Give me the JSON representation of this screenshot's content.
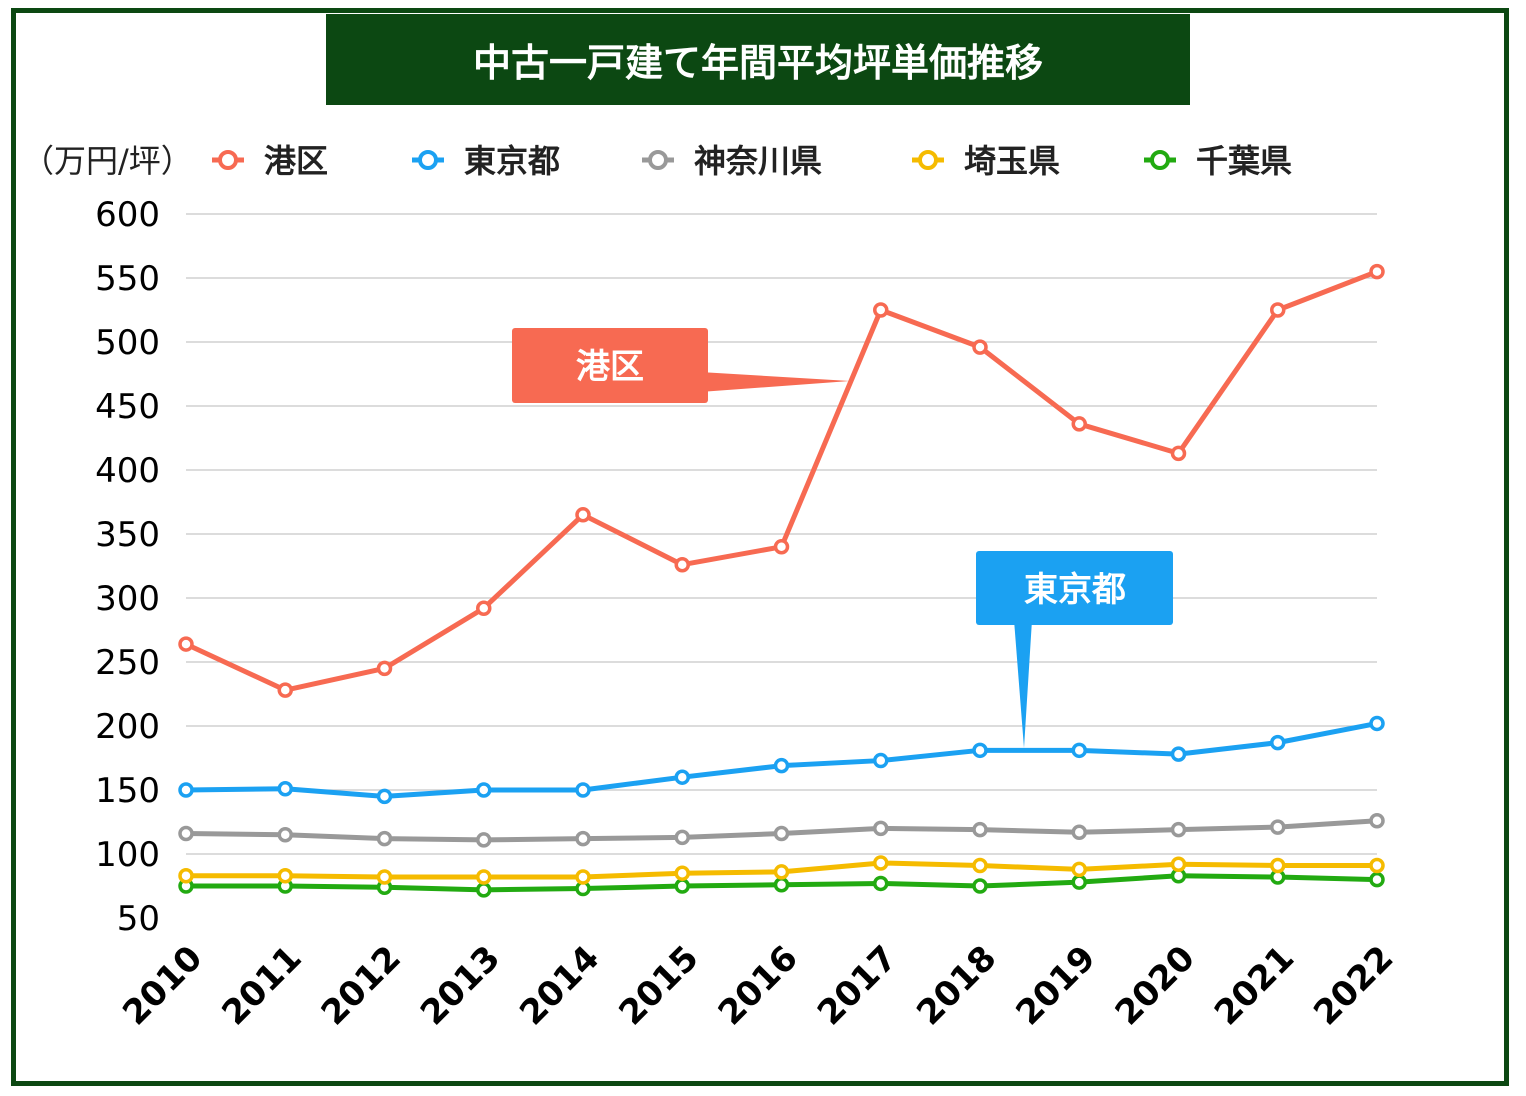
{
  "title": "中古一戸建て年間平均坪単価推移",
  "chart_data": {
    "type": "line",
    "title": "中古一戸建て年間平均坪単価推移",
    "unit_label": "（万円/坪）",
    "x": [
      "2010",
      "2011",
      "2012",
      "2013",
      "2014",
      "2015",
      "2016",
      "2017",
      "2018",
      "2019",
      "2020",
      "2021",
      "2022"
    ],
    "ylim": [
      50,
      600
    ],
    "yticks": [
      50,
      100,
      150,
      200,
      250,
      300,
      350,
      400,
      450,
      500,
      550,
      600
    ],
    "grid": true,
    "legend_position": "top",
    "series": [
      {
        "name": "港区",
        "color": "#f76a52",
        "values": [
          264,
          228,
          245,
          292,
          365,
          326,
          340,
          525,
          496,
          436,
          413,
          525,
          555
        ]
      },
      {
        "name": "東京都",
        "color": "#1ba1f2",
        "values": [
          150,
          151,
          145,
          150,
          150,
          160,
          169,
          173,
          181,
          181,
          178,
          187,
          202
        ]
      },
      {
        "name": "神奈川県",
        "color": "#999999",
        "values": [
          116,
          115,
          112,
          111,
          112,
          113,
          116,
          120,
          119,
          117,
          119,
          121,
          126
        ]
      },
      {
        "name": "埼玉県",
        "color": "#f5bb00",
        "values": [
          83,
          83,
          82,
          82,
          82,
          85,
          86,
          93,
          91,
          88,
          92,
          91,
          91
        ]
      },
      {
        "name": "千葉県",
        "color": "#22aa11",
        "values": [
          75,
          75,
          74,
          72,
          73,
          75,
          76,
          77,
          75,
          78,
          83,
          82,
          80
        ]
      }
    ],
    "annotations": [
      {
        "label": "港区",
        "color": "#f76a52",
        "series": "港区"
      },
      {
        "label": "東京都",
        "color": "#1ba1f2",
        "series": "東京都"
      }
    ]
  }
}
